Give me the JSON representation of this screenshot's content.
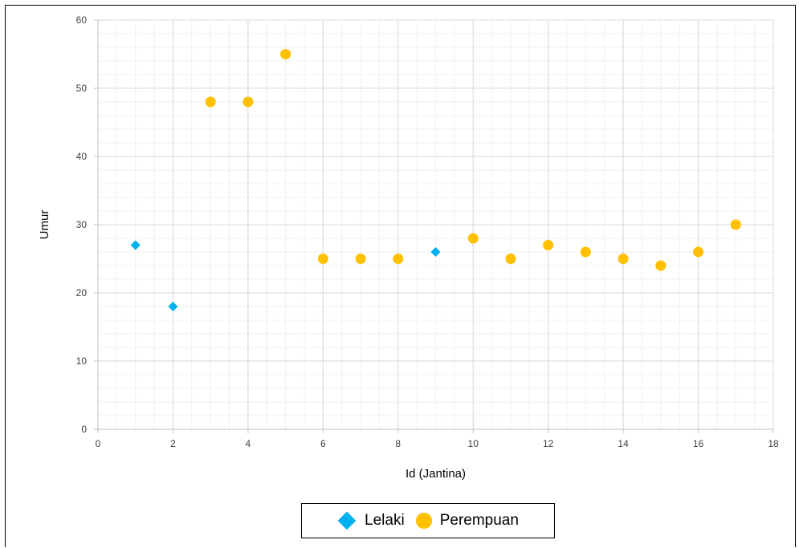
{
  "chart_data": {
    "type": "scatter",
    "xlabel": "Id (Jantina)",
    "ylabel": "Umur",
    "xlim": [
      0,
      18
    ],
    "ylim": [
      0,
      60
    ],
    "x_ticks": [
      0,
      2,
      4,
      6,
      8,
      10,
      12,
      14,
      16,
      18
    ],
    "y_ticks": [
      0,
      10,
      20,
      30,
      40,
      50,
      60
    ],
    "x_tick_labels": [
      "0",
      "2",
      "4",
      "6",
      "8",
      "10",
      "12",
      "14",
      "16",
      "18"
    ],
    "y_tick_labels": [
      "0",
      "10",
      "20",
      "30",
      "40",
      "50",
      "60"
    ],
    "grid": true,
    "minor_grid": true,
    "legend_position": "bottom",
    "series": [
      {
        "name": "Lelaki",
        "marker": "diamond",
        "color": "#00b0f0",
        "points": [
          [
            1,
            27
          ],
          [
            2,
            18
          ],
          [
            9,
            26
          ]
        ]
      },
      {
        "name": "Perempuan",
        "marker": "circle",
        "color": "#ffc000",
        "points": [
          [
            3,
            48
          ],
          [
            4,
            48
          ],
          [
            5,
            55
          ],
          [
            6,
            25
          ],
          [
            7,
            25
          ],
          [
            8,
            25
          ],
          [
            10,
            28
          ],
          [
            11,
            25
          ],
          [
            12,
            27
          ],
          [
            13,
            26
          ],
          [
            14,
            25
          ],
          [
            15,
            24
          ],
          [
            16,
            26
          ],
          [
            17,
            30
          ]
        ]
      }
    ]
  }
}
